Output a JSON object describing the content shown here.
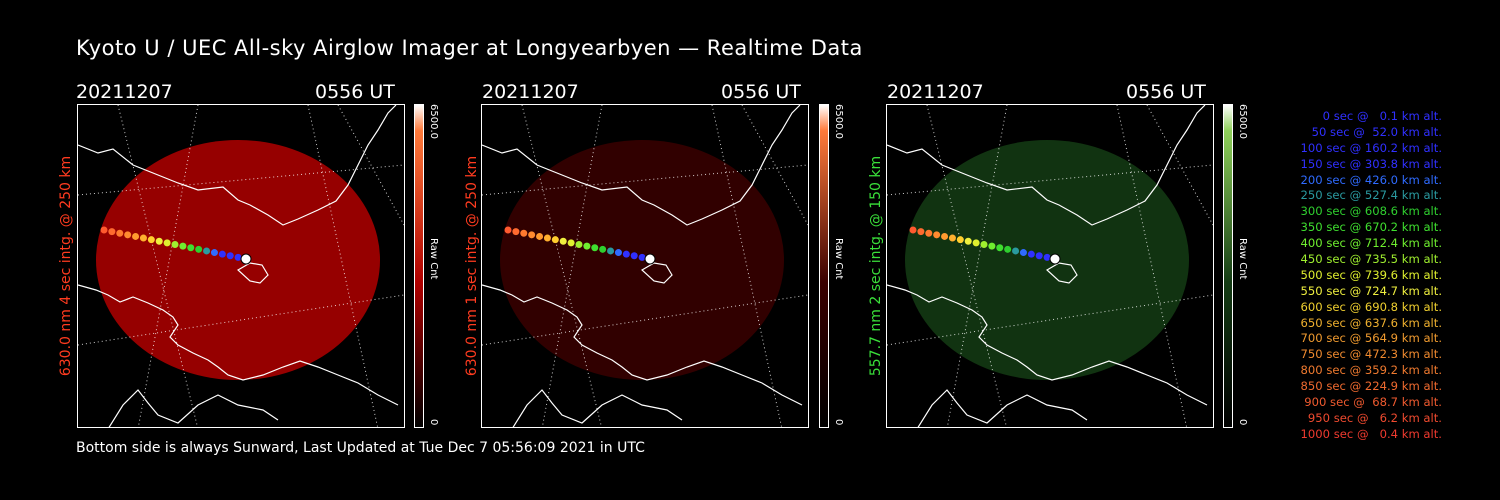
{
  "title": "Kyoto U / UEC All-sky Airglow Imager at Longyearbyen — Realtime Data",
  "panels": [
    {
      "date": "20211207",
      "time": "0556 UT",
      "label": "630.0 nm 4 sec intg. @ 250 km",
      "label_color": "#ff3b1f",
      "colorbar_max": "6500.0",
      "colorbar_min": "0",
      "colorbar_unit": "Raw Cnt",
      "color": "#b00000"
    },
    {
      "date": "20211207",
      "time": "0556 UT",
      "label": "630.0 nm 1 sec intg. @ 250 km",
      "label_color": "#ff3b1f",
      "colorbar_max": "6500.0",
      "colorbar_min": "0",
      "colorbar_unit": "Raw Cnt",
      "color": "#3a0000"
    },
    {
      "date": "20211207",
      "time": "0556 UT",
      "label": "557.7 nm 2 sec intg. @ 150 km",
      "label_color": "#3adf3a",
      "colorbar_max": "6500.0",
      "colorbar_min": "0",
      "colorbar_unit": "Raw Cnt",
      "color": "#143c14"
    }
  ],
  "legend": [
    {
      "text": "  0 sec @   0.1 km alt.",
      "color": "#3030ff"
    },
    {
      "text": " 50 sec @  52.0 km alt.",
      "color": "#3030ff"
    },
    {
      "text": "100 sec @ 160.2 km alt.",
      "color": "#3030ff"
    },
    {
      "text": "150 sec @ 303.8 km alt.",
      "color": "#3030ff"
    },
    {
      "text": "200 sec @ 426.0 km alt.",
      "color": "#2f6bff"
    },
    {
      "text": "250 sec @ 527.4 km alt.",
      "color": "#2a9aa0"
    },
    {
      "text": "300 sec @ 608.6 km alt.",
      "color": "#2fcf2f"
    },
    {
      "text": "350 sec @ 670.2 km alt.",
      "color": "#3fdf2f"
    },
    {
      "text": "400 sec @ 712.4 km alt.",
      "color": "#6fef2f"
    },
    {
      "text": "450 sec @ 735.5 km alt.",
      "color": "#9fef2f"
    },
    {
      "text": "500 sec @ 739.6 km alt.",
      "color": "#dfef2f"
    },
    {
      "text": "550 sec @ 724.7 km alt.",
      "color": "#efef3f"
    },
    {
      "text": "600 sec @ 690.8 km alt.",
      "color": "#efcf2f"
    },
    {
      "text": "650 sec @ 637.6 km alt.",
      "color": "#efb02f"
    },
    {
      "text": "700 sec @ 564.9 km alt.",
      "color": "#ef9a2f"
    },
    {
      "text": "750 sec @ 472.3 km alt.",
      "color": "#ef8a2f"
    },
    {
      "text": "800 sec @ 359.2 km alt.",
      "color": "#ef7a2f"
    },
    {
      "text": "850 sec @ 224.9 km alt.",
      "color": "#ef6a2f"
    },
    {
      "text": "900 sec @  68.7 km alt.",
      "color": "#ef5a2f"
    },
    {
      "text": "950 sec @   6.2 km alt.",
      "color": "#ef4a2f"
    },
    {
      "text": "1000 sec @   0.4 km alt.",
      "color": "#ef3a2f"
    }
  ],
  "trajectory_colors": [
    "#ff5a2f",
    "#ff6a2f",
    "#ff7a2f",
    "#ff8a2f",
    "#ff9a2f",
    "#ffb02f",
    "#ffcf2f",
    "#efef3f",
    "#dfef2f",
    "#9fef2f",
    "#6fef2f",
    "#3fdf2f",
    "#2fcf2f",
    "#2a9aa0",
    "#2f6bff",
    "#3030ff",
    "#3030ff",
    "#3030ff",
    "#ffffff"
  ],
  "footer": "Bottom side is always Sunward, Last Updated at Tue Dec  7 05:56:09 2021 in UTC"
}
